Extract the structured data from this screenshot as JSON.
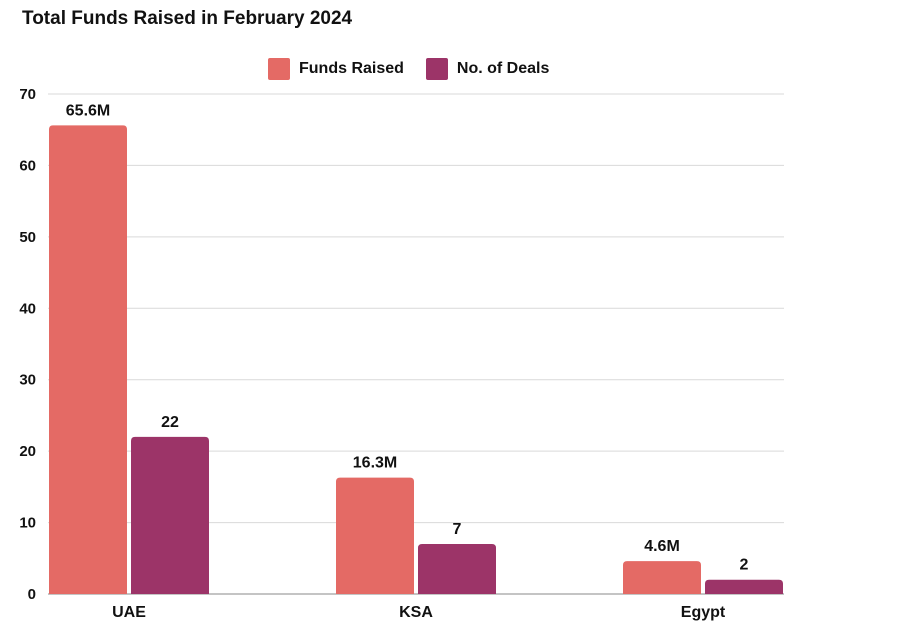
{
  "chart_data": {
    "type": "bar",
    "title": "Total Funds Raised in February 2024",
    "categories": [
      "UAE",
      "KSA",
      "Egypt"
    ],
    "series": [
      {
        "name": "Funds Raised",
        "values": [
          65.6,
          16.3,
          4.6
        ],
        "labels": [
          "65.6M",
          "16.3M",
          "4.6M"
        ],
        "color": "#e46a65"
      },
      {
        "name": "No. of Deals",
        "values": [
          22,
          7,
          2
        ],
        "labels": [
          "22",
          "7",
          "2"
        ],
        "color": "#9c3468"
      }
    ],
    "ylim": [
      0,
      70
    ],
    "yticks": [
      0,
      10,
      20,
      30,
      40,
      50,
      60,
      70
    ],
    "grid": true,
    "legend_position": "top"
  }
}
